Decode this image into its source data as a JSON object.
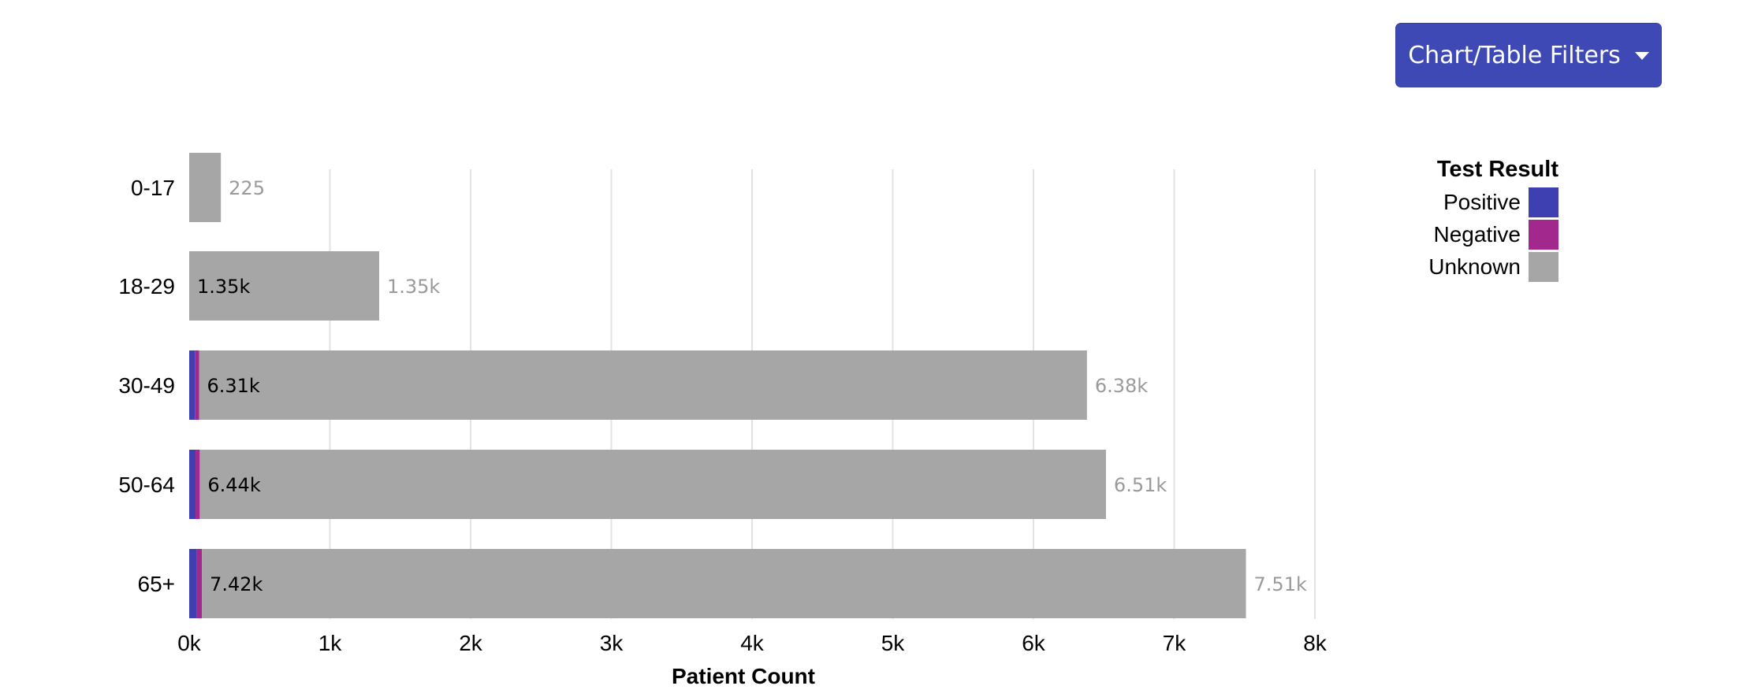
{
  "filter_button": {
    "label": "Chart/Table Filters"
  },
  "colors": {
    "positive": "#3e3fb0",
    "negative": "#a3288d",
    "unknown": "#a6a6a6",
    "grid": "#e3e3e3",
    "button": "#3f49b6"
  },
  "chart_data": {
    "type": "bar",
    "orientation": "horizontal",
    "stacked": true,
    "categories": [
      "0-17",
      "18-29",
      "30-49",
      "50-64",
      "65+"
    ],
    "series": [
      {
        "name": "Positive",
        "values": [
          0,
          0,
          40,
          45,
          55
        ]
      },
      {
        "name": "Negative",
        "values": [
          0,
          0,
          30,
          30,
          35
        ]
      },
      {
        "name": "Unknown",
        "values": [
          225,
          1350,
          6310,
          6440,
          7420
        ]
      }
    ],
    "inner_labels": [
      "",
      "1.35k",
      "6.31k",
      "6.44k",
      "7.42k"
    ],
    "total_labels": [
      "225",
      "1.35k",
      "6.38k",
      "6.51k",
      "7.51k"
    ],
    "xticks": [
      "0k",
      "1k",
      "2k",
      "3k",
      "4k",
      "5k",
      "6k",
      "7k",
      "8k"
    ],
    "xlabel": "Patient Count",
    "ylabel": "",
    "xlim": [
      0,
      8000
    ],
    "grid": "vertical",
    "legend": {
      "title": "Test Result",
      "position": "top-right",
      "items": [
        "Positive",
        "Negative",
        "Unknown"
      ]
    }
  }
}
